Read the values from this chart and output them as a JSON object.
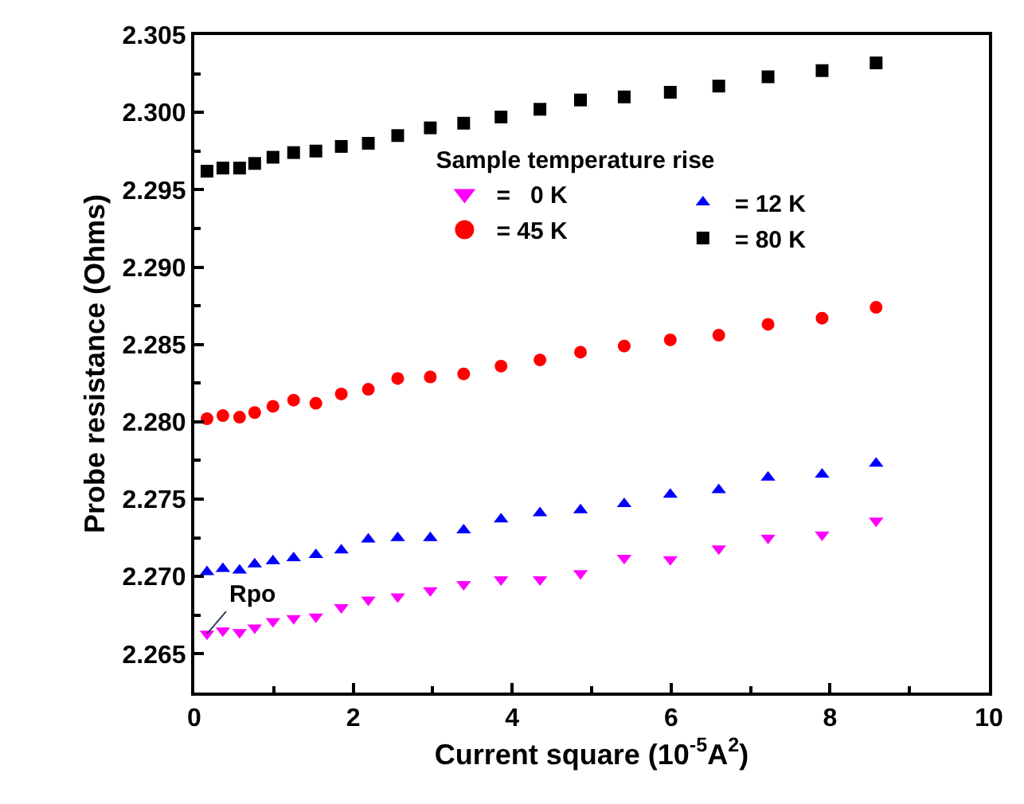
{
  "chart_data": {
    "type": "scatter",
    "xlabel": "Current square (10$^{-5}$A$^{2}$)",
    "ylabel": "Probe resistance (Ohms)",
    "legend_title": "Sample temperature rise",
    "x": [
      0.16,
      0.36,
      0.57,
      0.76,
      0.99,
      1.25,
      1.53,
      1.85,
      2.19,
      2.56,
      2.97,
      3.39,
      3.86,
      4.35,
      4.86,
      5.41,
      5.99,
      6.6,
      7.22,
      7.9,
      8.58
    ],
    "series": [
      {
        "name": "=   0 K",
        "color": "#ff00ff",
        "marker": "triangle-down",
        "values": [
          2.2663,
          2.2665,
          2.2664,
          2.2667,
          2.2671,
          2.2673,
          2.2674,
          2.268,
          2.2685,
          2.2687,
          2.2691,
          2.2695,
          2.2698,
          2.2698,
          2.2702,
          2.2712,
          2.2711,
          2.2718,
          2.2725,
          2.2727,
          2.2736
        ]
      },
      {
        "name": "= 12 K",
        "color": "#0000ff",
        "marker": "triangle",
        "values": [
          2.2703,
          2.2705,
          2.2704,
          2.2708,
          2.271,
          2.2712,
          2.2714,
          2.2717,
          2.2724,
          2.2725,
          2.2725,
          2.273,
          2.2737,
          2.2741,
          2.2743,
          2.2747,
          2.2753,
          2.2756,
          2.2764,
          2.2766,
          2.2773
        ]
      },
      {
        "name": "= 45 K",
        "color": "#ff0000",
        "marker": "circle",
        "values": [
          2.2802,
          2.2804,
          2.2803,
          2.2806,
          2.281,
          2.2814,
          2.2812,
          2.2818,
          2.2821,
          2.2828,
          2.2829,
          2.2831,
          2.2836,
          2.284,
          2.2845,
          2.2849,
          2.2853,
          2.2856,
          2.2863,
          2.2867,
          2.2874
        ]
      },
      {
        "name": "= 80 K",
        "color": "#000000",
        "marker": "square",
        "values": [
          2.2962,
          2.2964,
          2.2964,
          2.2967,
          2.2971,
          2.2974,
          2.2975,
          2.2978,
          2.298,
          2.2985,
          2.299,
          2.2993,
          2.2997,
          2.3002,
          2.3008,
          2.301,
          2.3013,
          2.3017,
          2.3023,
          2.3027,
          2.3032
        ]
      }
    ],
    "annotations": [
      {
        "text": "Rpo",
        "x": 0.16,
        "y": 2.2663
      }
    ],
    "xlim": [
      0,
      10
    ],
    "xticks": [
      0,
      2,
      4,
      6,
      8,
      10
    ],
    "ylim": [
      2.2625,
      2.305
    ],
    "yticks": [
      {
        "value": 2.265,
        "label": "2.265"
      },
      {
        "value": 2.27,
        "label": "2.270"
      },
      {
        "value": 2.275,
        "label": "2.275"
      },
      {
        "value": 2.28,
        "label": "2.280"
      },
      {
        "value": 2.285,
        "label": "2.285"
      },
      {
        "value": 2.29,
        "label": "2.290"
      },
      {
        "value": 2.295,
        "label": "2.295"
      },
      {
        "value": 2.3,
        "label": "2.300"
      },
      {
        "value": 2.305,
        "label": "2.305"
      }
    ],
    "legend": "top right"
  }
}
